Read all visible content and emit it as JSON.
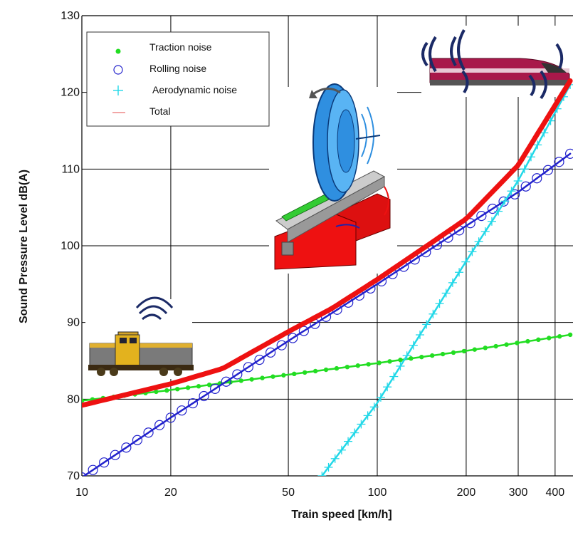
{
  "chart_data": {
    "type": "line",
    "xscale": "log",
    "xlabel": "Train speed [km/h]",
    "ylabel": "Sound Pressure Level dB(A)",
    "xlim": [
      10,
      450
    ],
    "ylim": [
      70,
      130
    ],
    "xticks": [
      10,
      20,
      50,
      100,
      200,
      300,
      400
    ],
    "xtick_labels": [
      "10",
      "20",
      "50",
      "100",
      "200",
      "300",
      "400"
    ],
    "yticks": [
      70,
      80,
      90,
      100,
      110,
      120,
      130
    ],
    "ytick_labels": [
      "70",
      "80",
      "90",
      "100",
      "110",
      "120",
      "130"
    ],
    "grid": true,
    "legend_position": "top-left",
    "series": [
      {
        "name": "Traction noise",
        "marker": "filled-circle",
        "color": "#22dd22",
        "x": [
          10,
          20,
          30,
          50,
          100,
          200,
          450
        ],
        "y": [
          79.8,
          81.2,
          82.1,
          83.2,
          84.7,
          86.3,
          88.4
        ]
      },
      {
        "name": "Rolling noise",
        "marker": "open-circle",
        "color": "#2222cc",
        "x": [
          10,
          20,
          30,
          50,
          100,
          200,
          300,
          450
        ],
        "y": [
          69.8,
          77.6,
          82.0,
          87.6,
          95.0,
          102.6,
          107.0,
          112.0
        ]
      },
      {
        "name": "Aerodynamic noise",
        "marker": "plus",
        "color": "#22d8e8",
        "x": [
          65,
          100,
          200,
          300,
          450
        ],
        "y": [
          70.0,
          79.5,
          98.0,
          108.5,
          121.0
        ]
      },
      {
        "name": "Total",
        "marker": "none",
        "color": "#ee1111",
        "x": [
          10,
          20,
          30,
          50,
          70,
          100,
          150,
          200,
          300,
          450
        ],
        "y": [
          79.2,
          82.0,
          84.0,
          88.8,
          91.8,
          95.6,
          100.2,
          103.5,
          110.5,
          121.5
        ]
      }
    ],
    "illustrations": [
      "freight-locomotive",
      "wheel-rail-contact",
      "high-speed-train"
    ]
  }
}
